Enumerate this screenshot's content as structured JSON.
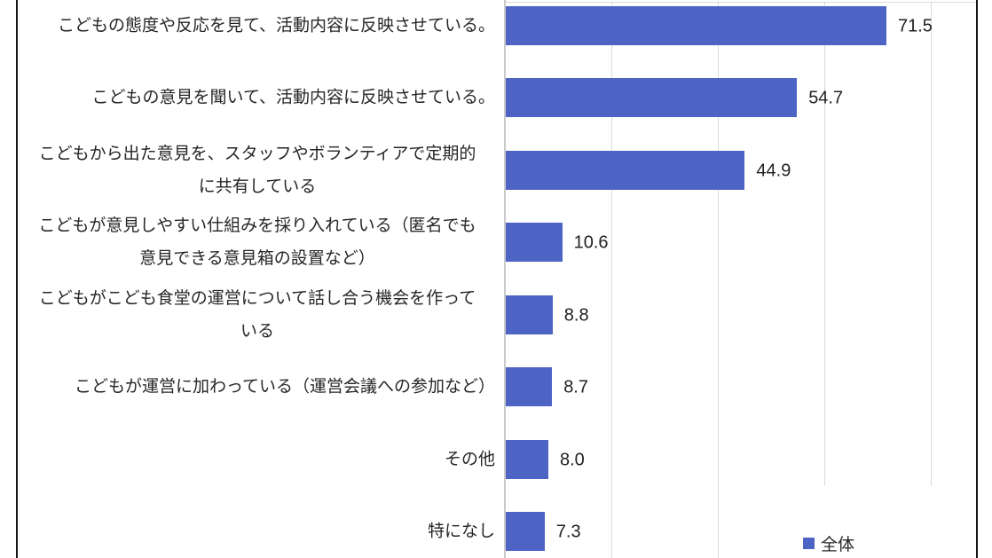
{
  "chart_data": {
    "type": "bar",
    "orientation": "horizontal",
    "categories": [
      "こどもの態度や反応を見て、活動内容に反映させている。",
      "こどもの意見を聞いて、活動内容に反映させている。",
      "こどもから出た意見を、スタッフやボランティアで定期的\nに共有している",
      "こどもが意見しやすい仕組みを採り入れている（匿名でも\n意見できる意見箱の設置など）",
      "こどもがこども食堂の運営について話し合う機会を作って\nいる",
      "こどもが運営に加わっている（運営会議への参加など）",
      "その他",
      "特になし"
    ],
    "values": [
      71.5,
      54.7,
      44.9,
      10.6,
      8.8,
      8.7,
      8.0,
      7.3
    ],
    "value_labels": [
      "71.5",
      "54.7",
      "44.9",
      "10.6",
      "8.8",
      "8.7",
      "8.0",
      "7.3"
    ],
    "series": [
      {
        "name": "全体",
        "values": [
          71.5,
          54.7,
          44.9,
          10.6,
          8.8,
          8.7,
          8.0,
          7.3
        ]
      }
    ],
    "legend": {
      "label": "全体",
      "position": "bottom-right"
    },
    "xlim": [
      0,
      88.3
    ],
    "gridline_interval": 20,
    "gridline_values": [
      20,
      40,
      60,
      80
    ],
    "grid": "vertical-only",
    "axis_tick_labels_visible": false,
    "colors": {
      "bar": "#4d64c4",
      "gridline": "#d9d9d9",
      "axis_line": "#c9c9c9",
      "page_border": "#161616",
      "text": "#262626"
    }
  }
}
